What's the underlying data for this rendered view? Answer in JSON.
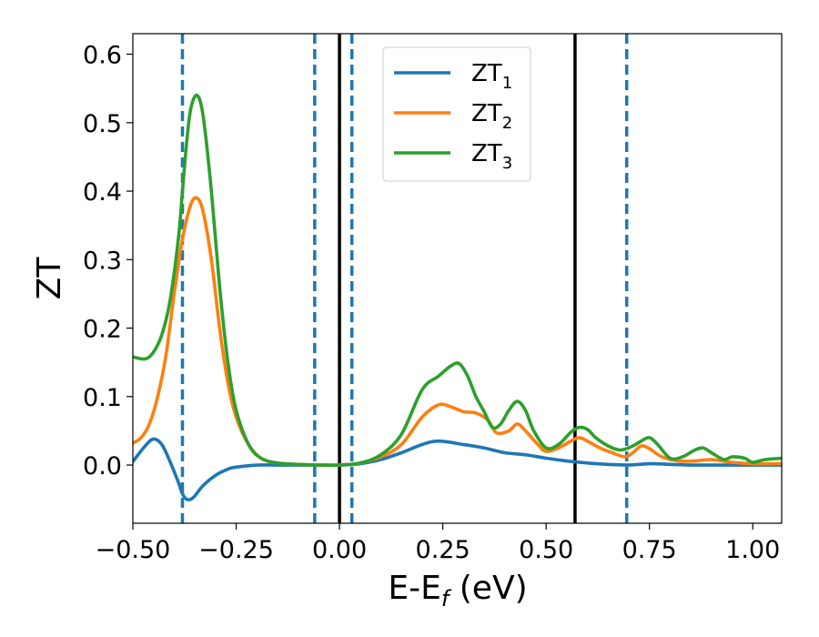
{
  "chart_data": {
    "type": "line",
    "xlabel": {
      "main": "E-E",
      "sub": "f",
      "unit": " (eV)"
    },
    "ylabel": "ZT",
    "xlim": [
      -0.5,
      1.07
    ],
    "ylim": [
      -0.085,
      0.63
    ],
    "xticks": [
      {
        "value": -0.5,
        "label": "−0.50"
      },
      {
        "value": -0.25,
        "label": "−0.25"
      },
      {
        "value": 0.0,
        "label": "0.00"
      },
      {
        "value": 0.25,
        "label": "0.25"
      },
      {
        "value": 0.5,
        "label": "0.50"
      },
      {
        "value": 0.75,
        "label": "0.75"
      },
      {
        "value": 1.0,
        "label": "1.00"
      }
    ],
    "yticks": [
      {
        "value": 0.0,
        "label": "0.0"
      },
      {
        "value": 0.1,
        "label": "0.1"
      },
      {
        "value": 0.2,
        "label": "0.2"
      },
      {
        "value": 0.3,
        "label": "0.3"
      },
      {
        "value": 0.4,
        "label": "0.4"
      },
      {
        "value": 0.5,
        "label": "0.5"
      },
      {
        "value": 0.6,
        "label": "0.6"
      }
    ],
    "grid": false,
    "legend_position": "upper-center",
    "vlines_solid": [
      0.0,
      0.57
    ],
    "vlines_dashed": [
      -0.38,
      -0.06,
      0.03,
      0.695
    ],
    "series": [
      {
        "name": "ZT",
        "sub": "1",
        "color": "#1f77b4",
        "x": [
          -0.5,
          -0.47,
          -0.45,
          -0.43,
          -0.41,
          -0.39,
          -0.38,
          -0.37,
          -0.36,
          -0.35,
          -0.33,
          -0.3,
          -0.27,
          -0.25,
          -0.2,
          -0.15,
          -0.1,
          -0.05,
          0.0,
          0.05,
          0.1,
          0.15,
          0.2,
          0.24,
          0.3,
          0.35,
          0.4,
          0.45,
          0.5,
          0.55,
          0.6,
          0.65,
          0.7,
          0.75,
          0.8,
          0.85,
          0.9,
          0.95,
          1.0,
          1.07
        ],
        "y": [
          0.005,
          0.028,
          0.038,
          0.03,
          0.005,
          -0.025,
          -0.042,
          -0.05,
          -0.05,
          -0.045,
          -0.03,
          -0.015,
          -0.006,
          -0.003,
          0.0,
          0.0,
          0.0,
          0.0,
          0.0,
          0.002,
          0.008,
          0.018,
          0.03,
          0.035,
          0.03,
          0.025,
          0.018,
          0.015,
          0.01,
          0.006,
          0.003,
          0.001,
          0.0,
          0.002,
          0.001,
          0.0,
          0.0,
          0.0,
          0.0,
          0.0
        ]
      },
      {
        "name": "ZT",
        "sub": "2",
        "color": "#ff7f0e",
        "x": [
          -0.5,
          -0.48,
          -0.46,
          -0.44,
          -0.42,
          -0.4,
          -0.38,
          -0.36,
          -0.345,
          -0.33,
          -0.31,
          -0.29,
          -0.27,
          -0.25,
          -0.22,
          -0.19,
          -0.15,
          -0.1,
          -0.05,
          0.0,
          0.05,
          0.1,
          0.15,
          0.2,
          0.24,
          0.27,
          0.3,
          0.33,
          0.36,
          0.38,
          0.41,
          0.43,
          0.45,
          0.48,
          0.5,
          0.53,
          0.56,
          0.58,
          0.6,
          0.63,
          0.66,
          0.69,
          0.71,
          0.73,
          0.75,
          0.78,
          0.82,
          0.86,
          0.9,
          0.95,
          1.0,
          1.07
        ],
        "y": [
          0.032,
          0.04,
          0.06,
          0.1,
          0.16,
          0.25,
          0.33,
          0.38,
          0.39,
          0.37,
          0.3,
          0.2,
          0.12,
          0.07,
          0.03,
          0.01,
          0.003,
          0.001,
          0.0,
          0.0,
          0.003,
          0.012,
          0.03,
          0.07,
          0.088,
          0.085,
          0.078,
          0.076,
          0.065,
          0.047,
          0.05,
          0.06,
          0.05,
          0.03,
          0.02,
          0.025,
          0.035,
          0.04,
          0.035,
          0.025,
          0.018,
          0.012,
          0.018,
          0.028,
          0.024,
          0.012,
          0.006,
          0.006,
          0.008,
          0.004,
          0.002,
          0.002
        ]
      },
      {
        "name": "ZT",
        "sub": "3",
        "color": "#2ca02c",
        "x": [
          -0.5,
          -0.47,
          -0.45,
          -0.43,
          -0.41,
          -0.39,
          -0.38,
          -0.37,
          -0.36,
          -0.345,
          -0.33,
          -0.31,
          -0.29,
          -0.27,
          -0.25,
          -0.22,
          -0.19,
          -0.15,
          -0.1,
          -0.05,
          0.0,
          0.05,
          0.1,
          0.15,
          0.2,
          0.24,
          0.27,
          0.29,
          0.31,
          0.33,
          0.35,
          0.37,
          0.39,
          0.41,
          0.43,
          0.45,
          0.47,
          0.5,
          0.53,
          0.56,
          0.58,
          0.6,
          0.62,
          0.65,
          0.68,
          0.71,
          0.73,
          0.75,
          0.77,
          0.8,
          0.83,
          0.86,
          0.88,
          0.9,
          0.93,
          0.95,
          0.98,
          1.0,
          1.03,
          1.07
        ],
        "y": [
          0.158,
          0.155,
          0.165,
          0.19,
          0.24,
          0.33,
          0.4,
          0.47,
          0.52,
          0.54,
          0.51,
          0.4,
          0.26,
          0.15,
          0.08,
          0.03,
          0.01,
          0.003,
          0.001,
          0.0,
          0.0,
          0.003,
          0.015,
          0.045,
          0.11,
          0.13,
          0.145,
          0.148,
          0.13,
          0.1,
          0.078,
          0.055,
          0.06,
          0.08,
          0.093,
          0.08,
          0.05,
          0.025,
          0.03,
          0.048,
          0.055,
          0.052,
          0.04,
          0.028,
          0.022,
          0.028,
          0.035,
          0.04,
          0.03,
          0.01,
          0.012,
          0.022,
          0.025,
          0.018,
          0.008,
          0.012,
          0.01,
          0.004,
          0.008,
          0.01
        ]
      }
    ]
  }
}
